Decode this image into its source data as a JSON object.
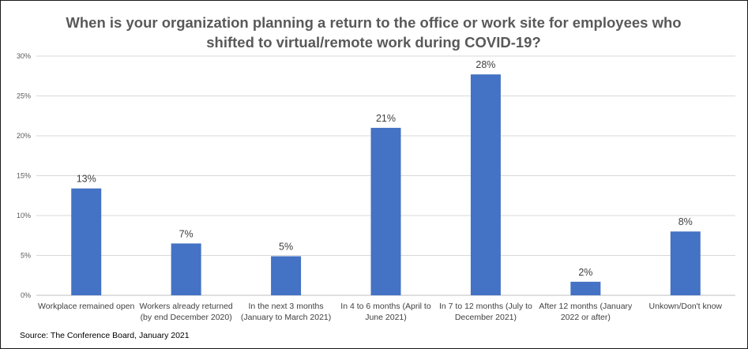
{
  "chart_data": {
    "type": "bar",
    "title_lines": [
      "When is your organization planning a return to the office or work site for employees who",
      "shifted to virtual/remote work during COVID-19?"
    ],
    "categories": [
      [
        "Workplace remained open"
      ],
      [
        "Workers already returned",
        "(by end December 2020)"
      ],
      [
        "In the next 3 months",
        "(January to March 2021)"
      ],
      [
        "In 4 to 6 months (April to",
        "June 2021)"
      ],
      [
        "In 7 to 12 months (July to",
        "December 2021)"
      ],
      [
        "After 12 months (January",
        "2022 or after)"
      ],
      [
        "Unkown/Don't know"
      ]
    ],
    "values": [
      13.4,
      6.5,
      4.9,
      21.0,
      27.7,
      1.7,
      8.0
    ],
    "data_labels": [
      "13%",
      "7%",
      "5%",
      "21%",
      "28%",
      "2%",
      "8%"
    ],
    "y_ticks": [
      "0%",
      "5%",
      "10%",
      "15%",
      "20%",
      "25%",
      "30%"
    ],
    "ylim": [
      0,
      30
    ],
    "grid": true,
    "bar_color": "#4472c4",
    "source": "Source: The Conference Board, January 2021"
  }
}
